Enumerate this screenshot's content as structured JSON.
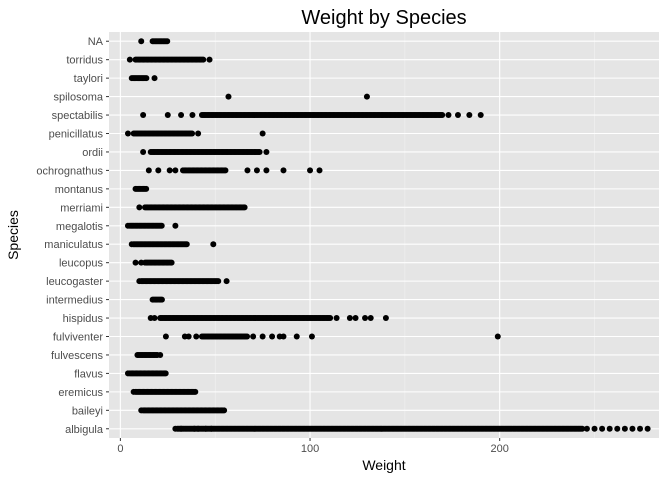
{
  "chart_data": {
    "type": "scatter",
    "title": "Weight by Species",
    "xlabel": "Weight",
    "ylabel": "Species",
    "xlim": [
      -6,
      284
    ],
    "x_ticks": [
      0,
      100,
      200
    ],
    "grid": true,
    "background": "#e5e5e5",
    "point_color": "#000000",
    "categories": [
      "albigula",
      "baileyi",
      "eremicus",
      "flavus",
      "fulvescens",
      "fulviventer",
      "hispidus",
      "intermedius",
      "leucogaster",
      "leucopus",
      "maniculatus",
      "megalotis",
      "merriami",
      "montanus",
      "ochrognathus",
      "ordii",
      "penicillatus",
      "spectabilis",
      "spilosoma",
      "taylori",
      "torridus",
      "NA"
    ],
    "series": [
      {
        "category": "albigula",
        "range": [
          30,
          244
        ],
        "outliers": [
          29,
          32,
          39,
          41,
          45,
          48,
          246,
          250,
          254,
          258,
          262,
          266,
          270,
          274,
          278
        ]
      },
      {
        "category": "baileyi",
        "range": [
          12,
          55
        ],
        "outliers": [
          11
        ]
      },
      {
        "category": "eremicus",
        "range": [
          8,
          40
        ],
        "outliers": [
          7
        ]
      },
      {
        "category": "flavus",
        "range": [
          5,
          24
        ],
        "outliers": [
          4
        ]
      },
      {
        "category": "fulvescens",
        "range": [
          9,
          20
        ],
        "outliers": [
          21
        ]
      },
      {
        "category": "fulviventer",
        "range": [
          43,
          67
        ],
        "outliers": [
          24,
          34,
          36,
          40,
          70,
          75,
          80,
          84,
          86,
          93,
          101,
          199
        ]
      },
      {
        "category": "hispidus",
        "range": [
          21,
          111
        ],
        "outliers": [
          16,
          18,
          114,
          121,
          124,
          129,
          132,
          140
        ]
      },
      {
        "category": "intermedius",
        "range": [
          17,
          22
        ],
        "outliers": []
      },
      {
        "category": "leucogaster",
        "range": [
          11,
          52
        ],
        "outliers": [
          10,
          56
        ]
      },
      {
        "category": "leucopus",
        "range": [
          13,
          27
        ],
        "outliers": [
          8,
          11
        ]
      },
      {
        "category": "maniculatus",
        "range": [
          7,
          35
        ],
        "outliers": [
          6,
          49
        ]
      },
      {
        "category": "megalotis",
        "range": [
          5,
          22
        ],
        "outliers": [
          4,
          29
        ]
      },
      {
        "category": "merriami",
        "range": [
          13,
          66
        ],
        "outliers": [
          10
        ]
      },
      {
        "category": "montanus",
        "range": [
          8,
          14
        ],
        "outliers": []
      },
      {
        "category": "ochrognathus",
        "range": [
          33,
          56
        ],
        "outliers": [
          15,
          20,
          26,
          29,
          67,
          72,
          77,
          86,
          100,
          105
        ]
      },
      {
        "category": "ordii",
        "range": [
          16,
          74
        ],
        "outliers": [
          12,
          77
        ]
      },
      {
        "category": "penicillatus",
        "range": [
          7,
          38
        ],
        "outliers": [
          4,
          41,
          75
        ]
      },
      {
        "category": "spectabilis",
        "range": [
          43,
          170
        ],
        "outliers": [
          12,
          25,
          32,
          38,
          173,
          178,
          184,
          190
        ]
      },
      {
        "category": "spilosoma",
        "range": [
          57,
          57
        ],
        "outliers": [
          130
        ]
      },
      {
        "category": "taylori",
        "range": [
          6,
          14
        ],
        "outliers": [
          18
        ]
      },
      {
        "category": "torridus",
        "range": [
          8,
          44
        ],
        "outliers": [
          5,
          47
        ]
      },
      {
        "category": "NA",
        "range": [
          17,
          25
        ],
        "outliers": [
          11
        ]
      }
    ]
  }
}
